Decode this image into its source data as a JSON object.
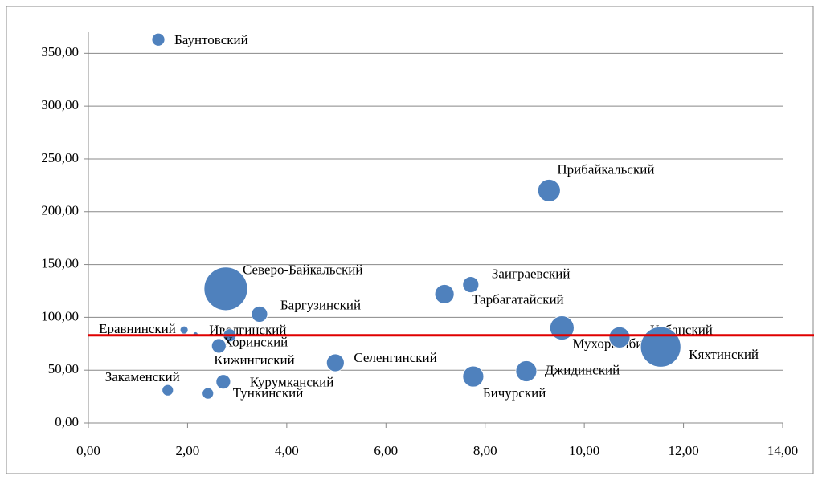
{
  "chart_data": {
    "type": "bubble",
    "color": "#4f81bd",
    "grid": true,
    "xlim": [
      0,
      14
    ],
    "ylim": [
      0,
      370
    ],
    "xticks": [
      {
        "value": 0,
        "label": "0,00"
      },
      {
        "value": 2,
        "label": "2,00"
      },
      {
        "value": 4,
        "label": "4,00"
      },
      {
        "value": 6,
        "label": "6,00"
      },
      {
        "value": 8,
        "label": "8,00"
      },
      {
        "value": 10,
        "label": "10,00"
      },
      {
        "value": 12,
        "label": "12,00"
      },
      {
        "value": 14,
        "label": "14,00"
      }
    ],
    "yticks": [
      {
        "value": 0,
        "label": "0,00"
      },
      {
        "value": 50,
        "label": "50,00"
      },
      {
        "value": 100,
        "label": "100,00"
      },
      {
        "value": 150,
        "label": "150,00"
      },
      {
        "value": 200,
        "label": "200,00"
      },
      {
        "value": 250,
        "label": "250,00"
      },
      {
        "value": 300,
        "label": "300,00"
      },
      {
        "value": 350,
        "label": "350,00"
      }
    ],
    "reference_line": {
      "value": 83,
      "color": "#e00000"
    },
    "names": [
      "Баунтовский",
      "Прибайкальский",
      "Северо-Байкальский",
      "Заиграевский",
      "Тарбагатайский",
      "Баргузинский",
      "Еравнинский",
      "Иволгинский",
      "Хоринский",
      "Кижингиский",
      "Селенгинский",
      "Мухоршибирский",
      "Кабанский",
      "Кяхтинский",
      "Джидинский",
      "Бичурский",
      "Курумканский",
      "Закаменский",
      "Тункинский"
    ],
    "x": [
      1.41,
      9.29,
      2.77,
      7.71,
      7.18,
      3.45,
      1.93,
      2.16,
      2.85,
      2.63,
      4.98,
      9.55,
      10.71,
      11.54,
      8.83,
      7.76,
      2.72,
      1.6,
      2.41
    ],
    "values": [
      363,
      220,
      127,
      131,
      122,
      103,
      88,
      84,
      83,
      73,
      57,
      90,
      81,
      72,
      49,
      44,
      39,
      31,
      28
    ],
    "sizes": [
      64,
      196,
      729,
      100,
      144,
      100,
      25,
      9,
      64,
      81,
      121,
      225,
      169,
      625,
      169,
      169,
      81,
      49,
      49
    ]
  }
}
